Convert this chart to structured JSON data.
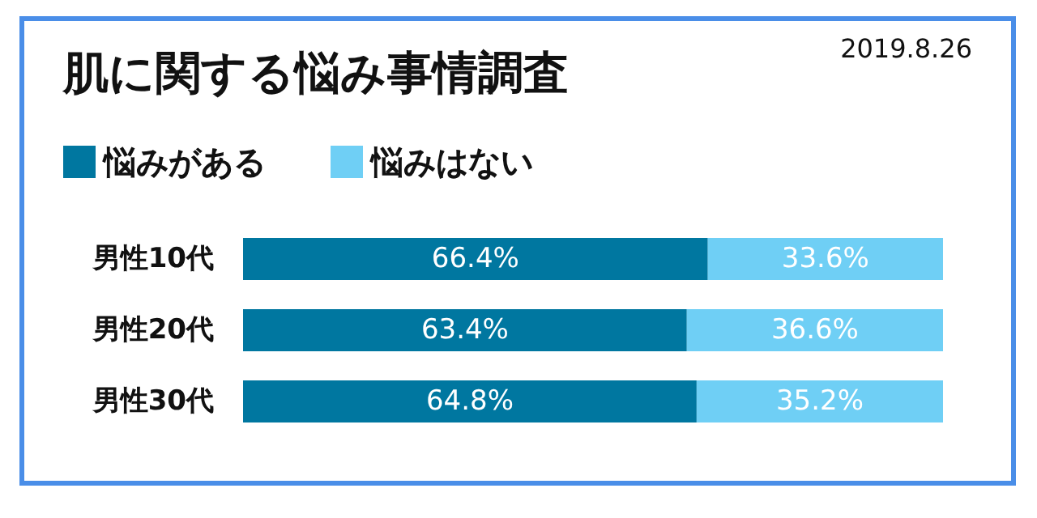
{
  "chart_data": {
    "type": "bar",
    "title": "肌に関する悩み事情調査",
    "annotations": [
      "2019.8.26"
    ],
    "orientation": "horizontal",
    "stacked": true,
    "categories": [
      "男性10代",
      "男性20代",
      "男性30代"
    ],
    "series": [
      {
        "name": "悩みがある",
        "color": "#0077a0",
        "values": [
          66.4,
          63.4,
          64.8
        ],
        "value_labels": [
          "66.4%",
          "63.4%",
          "64.8%"
        ]
      },
      {
        "name": "悩みはない",
        "color": "#6fcff5",
        "values": [
          33.6,
          36.6,
          35.2
        ],
        "value_labels": [
          "33.6%",
          "36.6%",
          "35.2%"
        ]
      }
    ],
    "xlim": [
      0,
      100
    ],
    "tick_labels": "y",
    "grid": false,
    "legend": "top left"
  }
}
